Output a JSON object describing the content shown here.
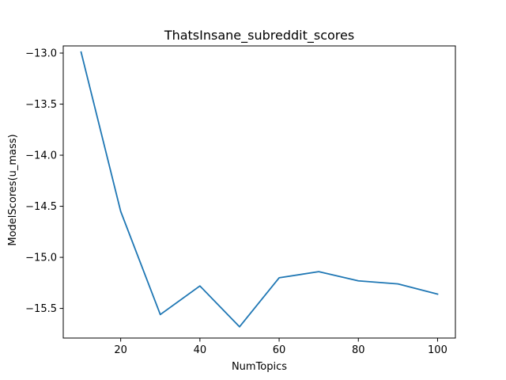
{
  "chart_data": {
    "type": "line",
    "title": "ThatsInsane_subreddit_scores",
    "xlabel": "NumTopics",
    "ylabel": "ModelScores(u_mass)",
    "xlim": [
      5.5,
      104.5
    ],
    "ylim": [
      -15.79,
      -12.93
    ],
    "xticks": [
      20,
      40,
      60,
      80,
      100
    ],
    "yticks": [
      -13.0,
      -13.5,
      -14.0,
      -14.5,
      -15.0,
      -15.5
    ],
    "ytick_labels": [
      "−13.0",
      "−13.5",
      "−14.0",
      "−14.5",
      "−15.0",
      "−15.5"
    ],
    "grid": false,
    "legend": "none",
    "series": [
      {
        "color": "#1f77b4",
        "x": [
          10,
          20,
          30,
          40,
          50,
          60,
          70,
          80,
          90,
          100
        ],
        "y": [
          -12.99,
          -14.55,
          -15.56,
          -15.28,
          -15.68,
          -15.2,
          -15.14,
          -15.23,
          -15.26,
          -15.36
        ]
      }
    ]
  }
}
